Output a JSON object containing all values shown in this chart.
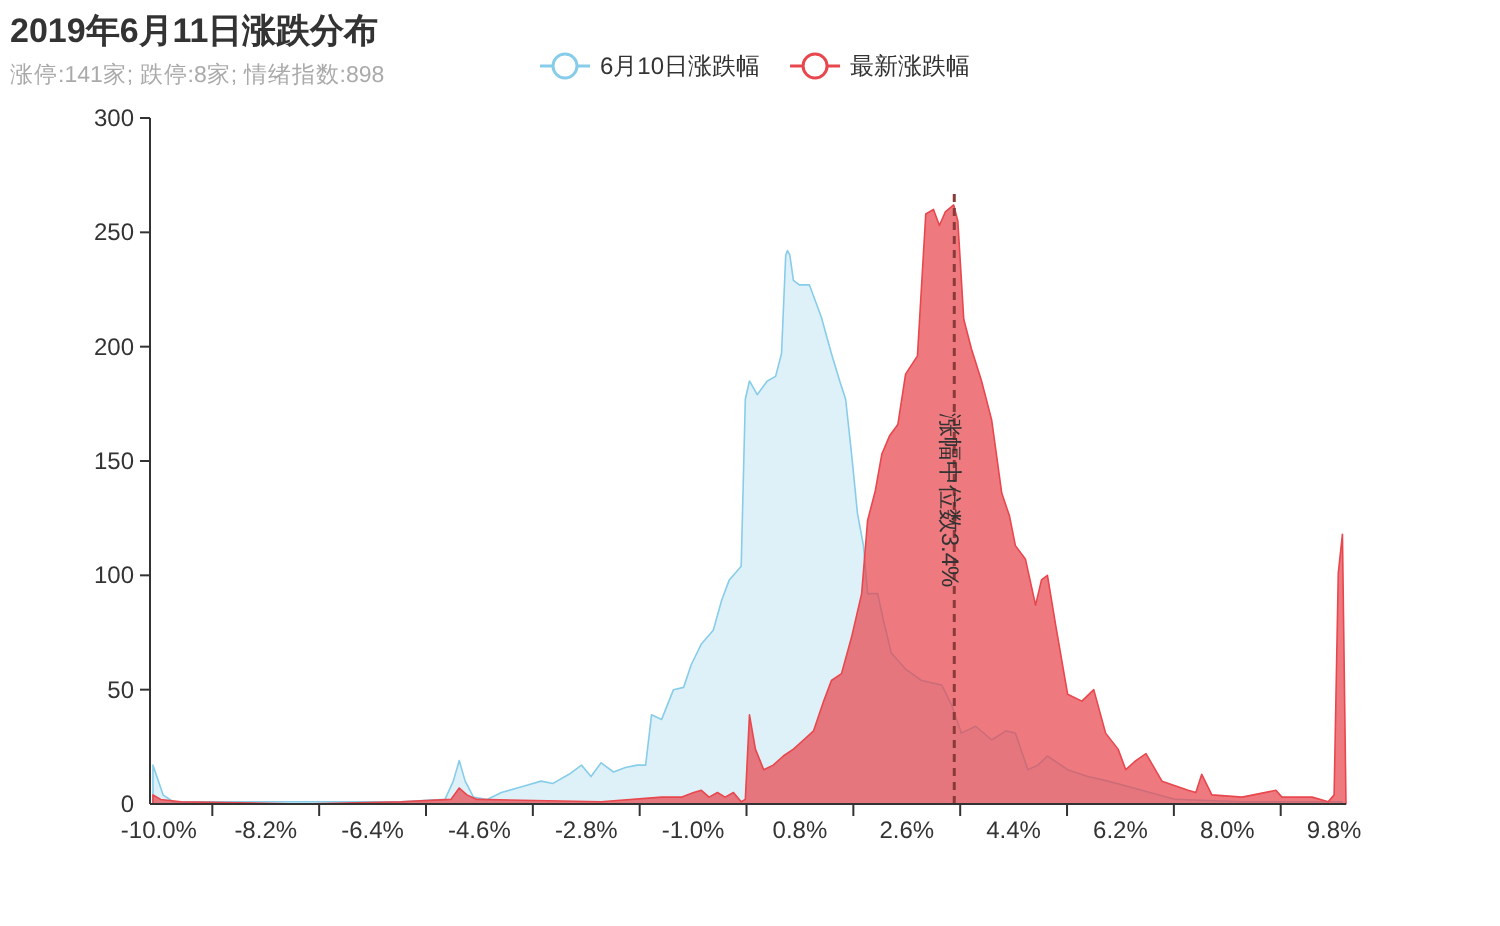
{
  "chart_data": {
    "type": "area",
    "title": "2019年6月11日涨跌分布",
    "subtitle": "涨停:141家; 跌停:8家; 情绪指数:898",
    "xlim": [
      -10.15,
      10.0
    ],
    "ylim": [
      0,
      300
    ],
    "yticks": [
      0,
      50,
      100,
      150,
      200,
      250,
      300
    ],
    "xticks": [
      {
        "value": -10.0,
        "label": "-10.0%"
      },
      {
        "value": -8.2,
        "label": "-8.2%"
      },
      {
        "value": -6.4,
        "label": "-6.4%"
      },
      {
        "value": -4.6,
        "label": "-4.6%"
      },
      {
        "value": -2.8,
        "label": "-2.8%"
      },
      {
        "value": -1.0,
        "label": "-1.0%"
      },
      {
        "value": 0.8,
        "label": "0.8%"
      },
      {
        "value": 2.6,
        "label": "2.6%"
      },
      {
        "value": 4.4,
        "label": "4.4%"
      },
      {
        "value": 6.2,
        "label": "6.2%"
      },
      {
        "value": 8.0,
        "label": "8.0%"
      },
      {
        "value": 9.8,
        "label": "9.8%"
      },
      {
        "value": -9.1,
        "label": null
      },
      {
        "value": -7.3,
        "label": null
      },
      {
        "value": -5.5,
        "label": null
      },
      {
        "value": -3.7,
        "label": null
      },
      {
        "value": -1.9,
        "label": null
      },
      {
        "value": -0.1,
        "label": null
      },
      {
        "value": 1.7,
        "label": null
      },
      {
        "value": 3.5,
        "label": null
      },
      {
        "value": 5.3,
        "label": null
      },
      {
        "value": 7.1,
        "label": null
      },
      {
        "value": 8.9,
        "label": null
      }
    ],
    "legend": "top",
    "grid": false,
    "ref_lines": [
      {
        "axis": "x",
        "value": 3.4,
        "label": "涨幅中位数3.4%",
        "color": "#8b3a3a",
        "line_style": "dashed"
      }
    ],
    "series": [
      {
        "name": "6月10日涨跌幅",
        "color": "#87cdea",
        "x": [
          -10.1,
          -9.93,
          -9.76,
          -8.62,
          -7.27,
          -5.92,
          -5.18,
          -5.04,
          -4.94,
          -4.84,
          -4.7,
          -4.47,
          -4.23,
          -3.83,
          -3.56,
          -3.36,
          -3.09,
          -2.88,
          -2.72,
          -2.55,
          -2.34,
          -2.14,
          -1.94,
          -1.8,
          -1.7,
          -1.53,
          -1.33,
          -1.16,
          -1.03,
          -0.86,
          -0.66,
          -0.52,
          -0.39,
          -0.19,
          -0.12,
          -0.05,
          0.08,
          0.25,
          0.39,
          0.49,
          0.56,
          0.59,
          0.63,
          0.69,
          0.79,
          0.96,
          1.16,
          1.33,
          1.47,
          1.57,
          1.67,
          1.77,
          1.87,
          1.94,
          2.11,
          2.21,
          2.34,
          2.58,
          2.85,
          3.19,
          3.36,
          3.52,
          3.76,
          4.03,
          4.27,
          4.43,
          4.64,
          4.81,
          4.97,
          5.31,
          5.65,
          5.99,
          6.56,
          7.13,
          8.25,
          9.6,
          9.93
        ],
        "values": [
          17,
          4,
          1,
          1,
          1,
          1,
          2,
          10,
          19,
          10,
          3,
          2,
          5,
          8,
          10,
          9,
          13,
          17,
          12,
          18,
          14,
          16,
          17,
          17,
          39,
          37,
          50,
          51,
          61,
          70,
          76,
          89,
          98,
          104,
          177,
          185,
          179,
          185,
          187,
          197,
          240,
          242,
          240,
          229,
          227,
          227,
          213,
          197,
          185,
          177,
          153,
          127,
          113,
          92,
          92,
          80,
          66,
          59,
          54,
          52,
          43,
          31,
          34,
          28,
          32,
          31,
          15,
          17,
          21,
          15,
          12,
          10,
          6,
          2,
          1,
          1,
          1
        ]
      },
      {
        "name": "最新涨跌幅",
        "color": "#e8474d",
        "x": [
          -10.1,
          -9.97,
          -9.63,
          -7.61,
          -5.92,
          -5.08,
          -4.94,
          -4.81,
          -4.64,
          -2.55,
          -1.53,
          -1.2,
          -0.99,
          -0.86,
          -0.73,
          -0.59,
          -0.46,
          -0.32,
          -0.19,
          -0.12,
          -0.05,
          0.05,
          0.19,
          0.35,
          0.52,
          0.69,
          0.86,
          1.03,
          1.2,
          1.33,
          1.5,
          1.67,
          1.84,
          1.94,
          2.07,
          2.18,
          2.31,
          2.45,
          2.58,
          2.78,
          2.92,
          3.05,
          3.15,
          3.25,
          3.39,
          3.46,
          3.56,
          3.69,
          3.86,
          4.03,
          4.2,
          4.33,
          4.43,
          4.6,
          4.77,
          4.87,
          4.97,
          5.11,
          5.31,
          5.55,
          5.75,
          5.95,
          6.16,
          6.29,
          6.46,
          6.63,
          6.9,
          7.34,
          7.47,
          7.57,
          7.74,
          8.25,
          8.82,
          8.92,
          9.43,
          9.7,
          9.8,
          9.87,
          9.94,
          10.0
        ],
        "values": [
          4,
          2,
          1,
          0,
          1,
          2,
          7,
          4,
          2,
          1,
          3,
          3,
          5,
          6,
          3,
          5,
          3,
          5,
          1,
          2,
          39,
          24,
          15,
          17,
          21,
          24,
          28,
          32,
          45,
          54,
          57,
          73,
          92,
          124,
          137,
          153,
          161,
          166,
          188,
          196,
          258,
          260,
          253,
          259,
          262,
          255,
          212,
          199,
          185,
          168,
          136,
          126,
          113,
          107,
          87,
          98,
          100,
          78,
          48,
          45,
          50,
          31,
          24,
          15,
          19,
          22,
          10,
          6,
          5,
          13,
          4,
          3,
          6,
          3,
          3,
          1,
          4,
          101,
          118,
          0
        ]
      }
    ]
  }
}
